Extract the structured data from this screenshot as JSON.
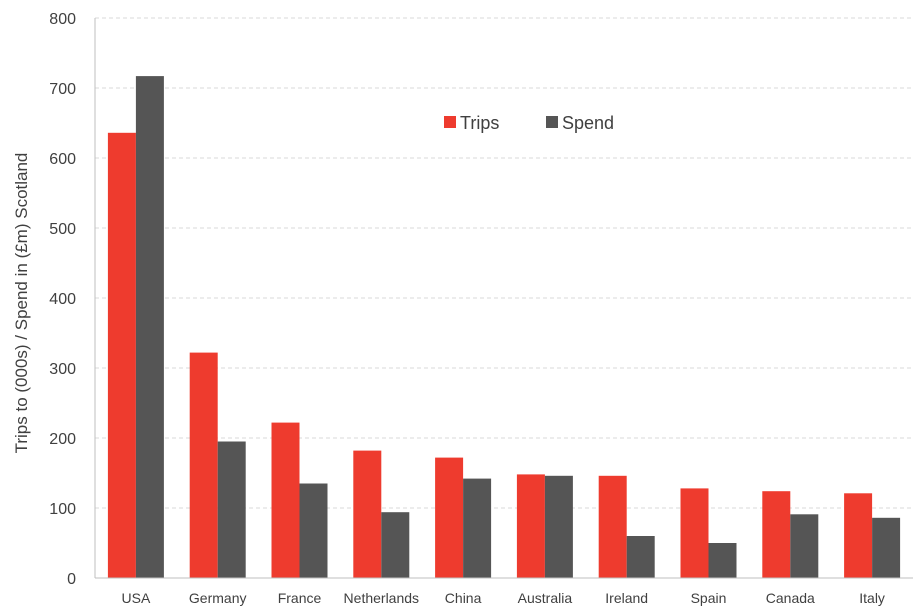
{
  "chart_data": {
    "type": "bar",
    "title": "",
    "xlabel": "",
    "ylabel": "Trips to (000s) / Spend in (£m) Scotland",
    "ylim": [
      0,
      800
    ],
    "yticks": [
      0,
      100,
      200,
      300,
      400,
      500,
      600,
      700,
      800
    ],
    "grid": true,
    "legend_position": "top-center",
    "categories": [
      "USA",
      "Germany",
      "France",
      "Netherlands",
      "China",
      "Australia",
      "Ireland",
      "Spain",
      "Canada",
      "Italy"
    ],
    "series": [
      {
        "name": "Trips",
        "color": "#ee3b2e",
        "values": [
          636,
          322,
          222,
          182,
          172,
          148,
          146,
          128,
          124,
          121
        ]
      },
      {
        "name": "Spend",
        "color": "#555555",
        "values": [
          717,
          195,
          135,
          94,
          142,
          146,
          60,
          50,
          91,
          86
        ]
      }
    ]
  }
}
